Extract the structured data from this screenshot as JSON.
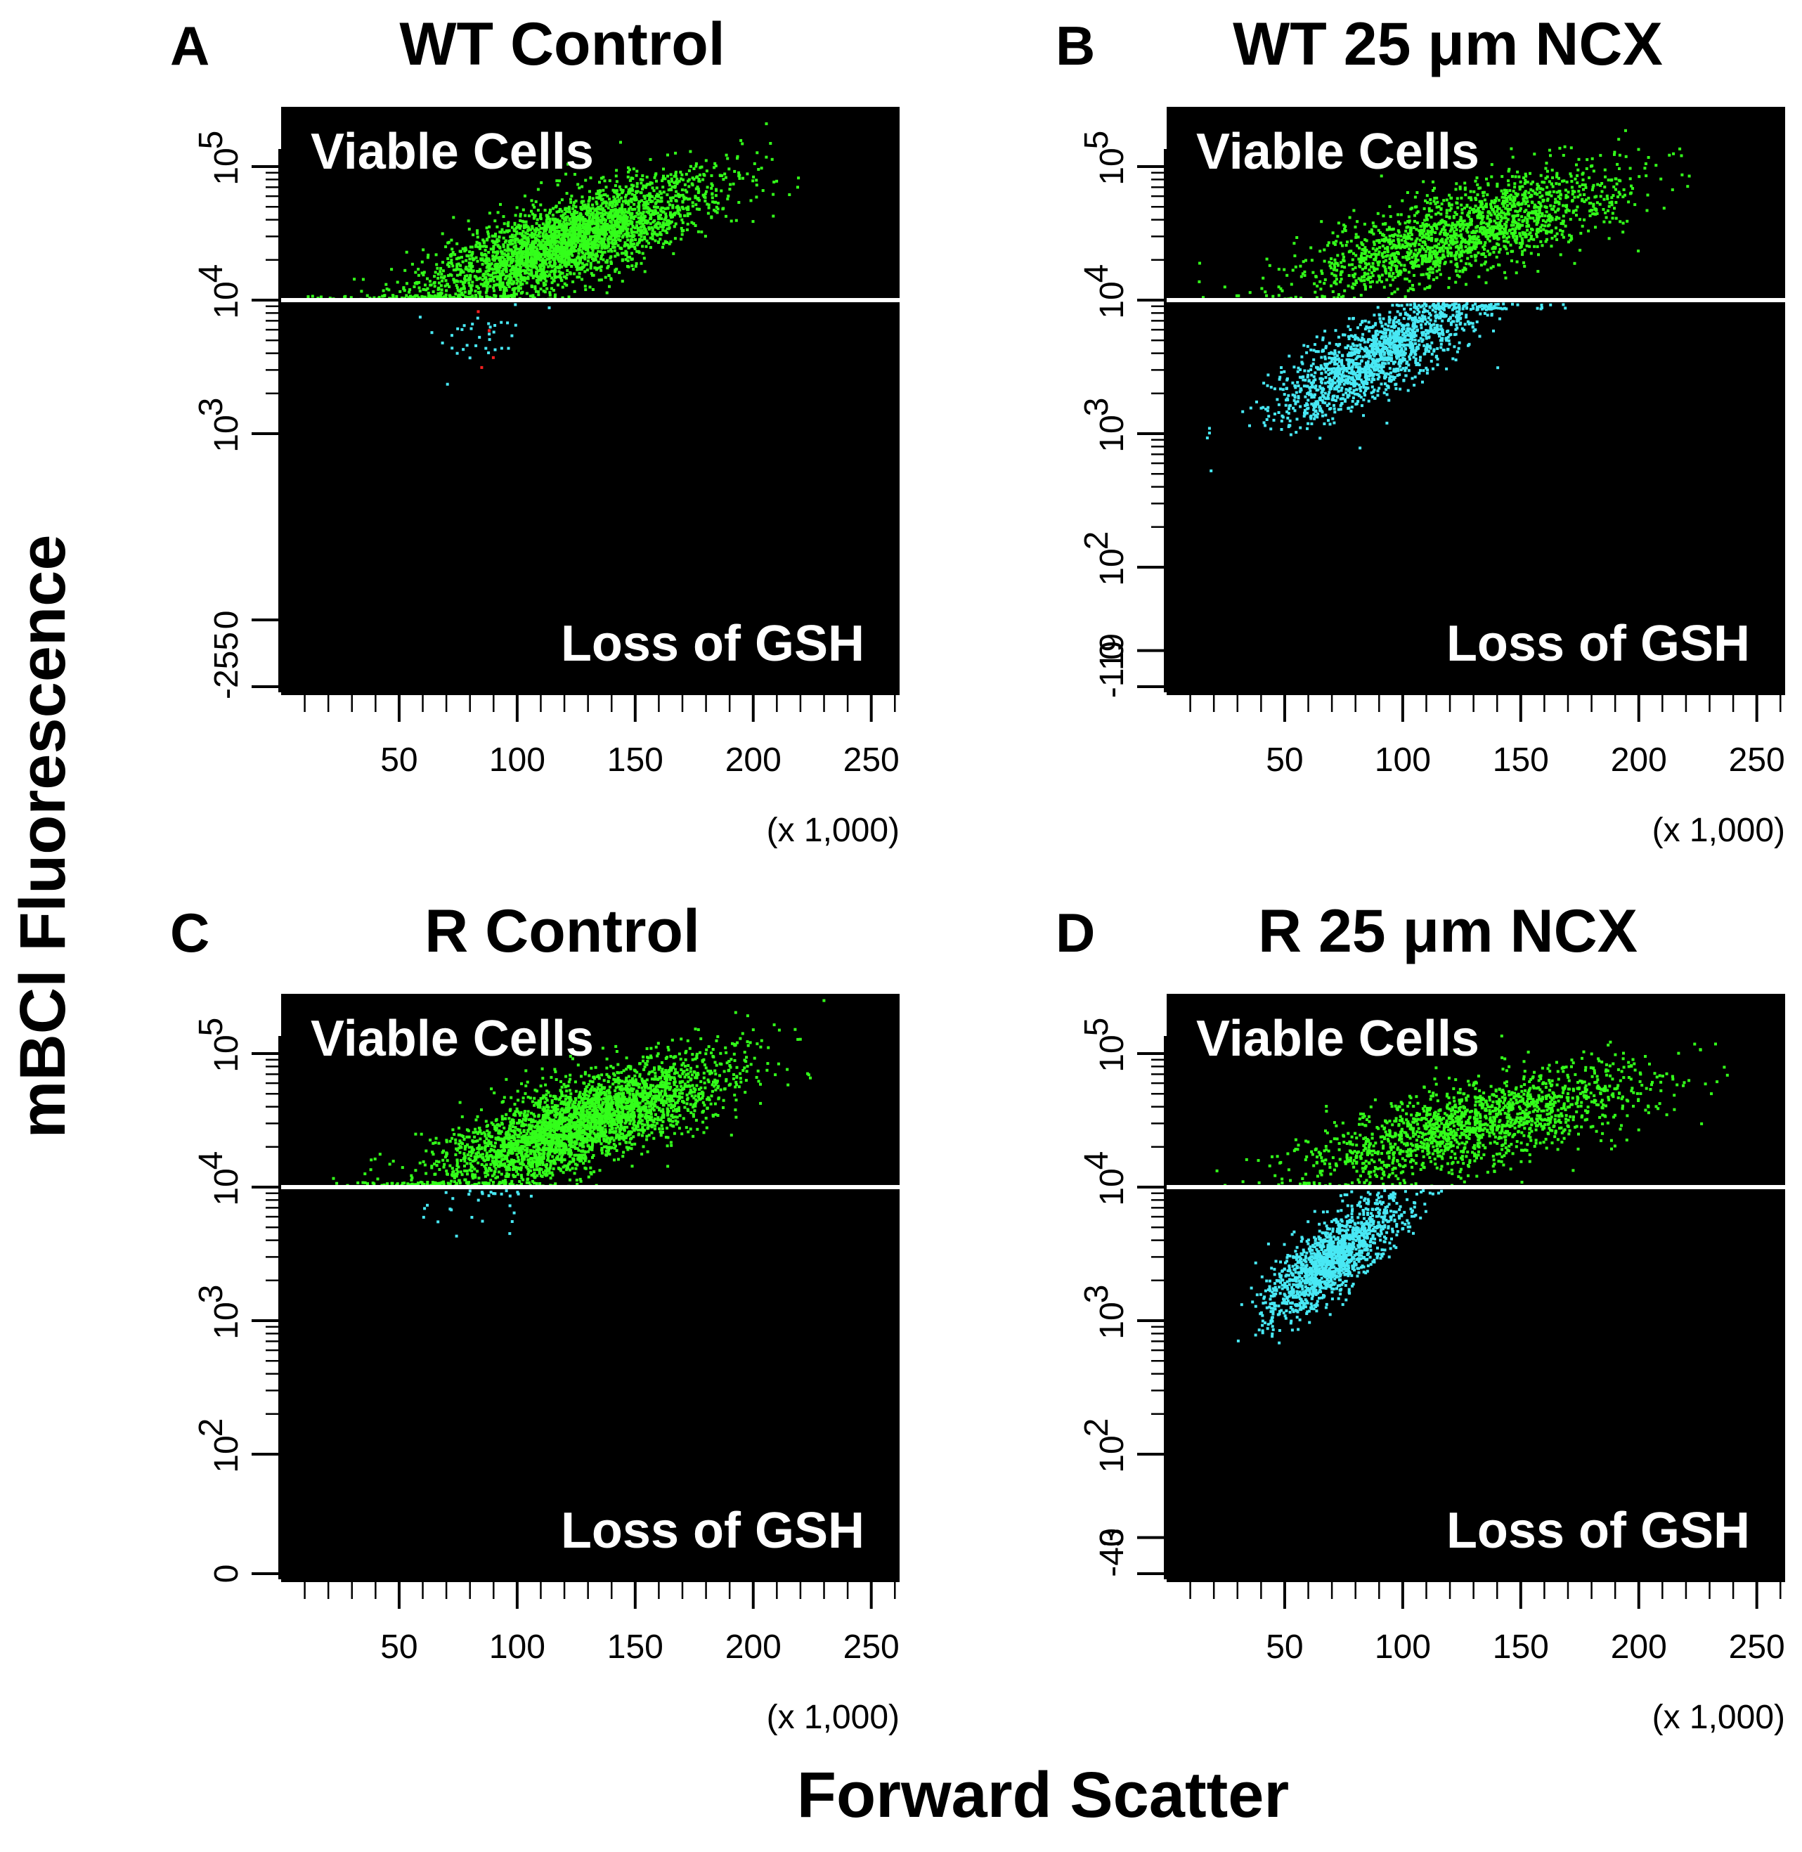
{
  "figure": {
    "y_axis_title": "mBCl Fluorescence",
    "x_axis_title": "Forward Scatter",
    "colors": {
      "viable": "#33ff1a",
      "loss": "#48e8f4",
      "outlier": "#ff2020",
      "background": "#000000",
      "gate": "#ffffff"
    }
  },
  "chart_data": [
    {
      "type": "scatter",
      "panel_letter": "A",
      "title": "WT Control",
      "gate_label_upper": "Viable Cells",
      "gate_label_lower": "Loss of GSH",
      "x_unit_label": "(x 1,000)",
      "xlim": [
        0,
        262
      ],
      "x_ticks": [
        50,
        100,
        150,
        200,
        250
      ],
      "x_tick_labels": [
        "50",
        "100",
        "150",
        "200",
        "250"
      ],
      "y_scale": "log",
      "y_ticks": [
        {
          "label": "-255",
          "value": -255
        },
        {
          "label": "0",
          "value": 0
        },
        {
          "label": "10^3",
          "value": 1000
        },
        {
          "label": "10^4",
          "value": 10000
        },
        {
          "label": "10^5",
          "value": 100000
        }
      ],
      "gate_y": 10000,
      "viable": {
        "x_center": 120,
        "y_center": 28000,
        "count": 3200,
        "x_spread": 30,
        "slope": 0.006
      },
      "loss": {
        "x_center": 85,
        "y_center": 5800,
        "count": 35
      },
      "outliers": {
        "x_center": 80,
        "y_center": 4500,
        "count": 4
      }
    },
    {
      "type": "scatter",
      "panel_letter": "B",
      "title": "WT 25 μm NCX",
      "gate_label_upper": "Viable Cells",
      "gate_label_lower": "Loss of GSH",
      "x_unit_label": "(x 1,000)",
      "xlim": [
        0,
        262
      ],
      "x_ticks": [
        50,
        100,
        150,
        200,
        250
      ],
      "x_tick_labels": [
        "50",
        "100",
        "150",
        "200",
        "250"
      ],
      "y_scale": "log",
      "y_ticks": [
        {
          "label": "-119",
          "value": -119
        },
        {
          "label": "0",
          "value": 0
        },
        {
          "label": "10^2",
          "value": 100
        },
        {
          "label": "10^3",
          "value": 1000
        },
        {
          "label": "10^4",
          "value": 10000
        },
        {
          "label": "10^5",
          "value": 100000
        }
      ],
      "gate_y": 10000,
      "viable": {
        "x_center": 125,
        "y_center": 33000,
        "count": 1800,
        "x_spread": 34,
        "slope": 0.005
      },
      "loss": {
        "x_center": 90,
        "y_center": 4000,
        "count": 1600,
        "x_spread": 22,
        "slope": 0.009
      },
      "outliers": {
        "x_center": 0,
        "y_center": 0,
        "count": 0
      }
    },
    {
      "type": "scatter",
      "panel_letter": "C",
      "title": "R Control",
      "gate_label_upper": "Viable Cells",
      "gate_label_lower": "Loss of GSH",
      "x_unit_label": "(x 1,000)",
      "xlim": [
        0,
        262
      ],
      "x_ticks": [
        50,
        100,
        150,
        200,
        250
      ],
      "x_tick_labels": [
        "50",
        "100",
        "150",
        "200",
        "250"
      ],
      "y_scale": "log",
      "y_ticks": [
        {
          "label": "0",
          "value": 0
        },
        {
          "label": "10^2",
          "value": 100
        },
        {
          "label": "10^3",
          "value": 1000
        },
        {
          "label": "10^4",
          "value": 10000
        },
        {
          "label": "10^5",
          "value": 100000
        }
      ],
      "gate_y": 10000,
      "viable": {
        "x_center": 125,
        "y_center": 30000,
        "count": 3400,
        "x_spread": 30,
        "slope": 0.006
      },
      "loss": {
        "x_center": 85,
        "y_center": 8500,
        "count": 30
      },
      "outliers": {
        "x_center": 0,
        "y_center": 0,
        "count": 0
      }
    },
    {
      "type": "scatter",
      "panel_letter": "D",
      "title": "R 25 μm NCX",
      "gate_label_upper": "Viable Cells",
      "gate_label_lower": "Loss of GSH",
      "x_unit_label": "(x 1,000)",
      "xlim": [
        0,
        262
      ],
      "x_ticks": [
        50,
        100,
        150,
        200,
        250
      ],
      "x_tick_labels": [
        "50",
        "100",
        "150",
        "200",
        "250"
      ],
      "y_scale": "log",
      "y_ticks": [
        {
          "label": "-43",
          "value": -43
        },
        {
          "label": "0",
          "value": 0
        },
        {
          "label": "10^2",
          "value": 100
        },
        {
          "label": "10^3",
          "value": 1000
        },
        {
          "label": "10^4",
          "value": 10000
        },
        {
          "label": "10^5",
          "value": 100000
        }
      ],
      "gate_y": 10000,
      "viable": {
        "x_center": 130,
        "y_center": 30000,
        "count": 1700,
        "x_spread": 36,
        "slope": 0.004
      },
      "loss": {
        "x_center": 70,
        "y_center": 3000,
        "count": 1500,
        "x_spread": 14,
        "slope": 0.012
      },
      "outliers": {
        "x_center": 0,
        "y_center": 0,
        "count": 0
      }
    }
  ]
}
